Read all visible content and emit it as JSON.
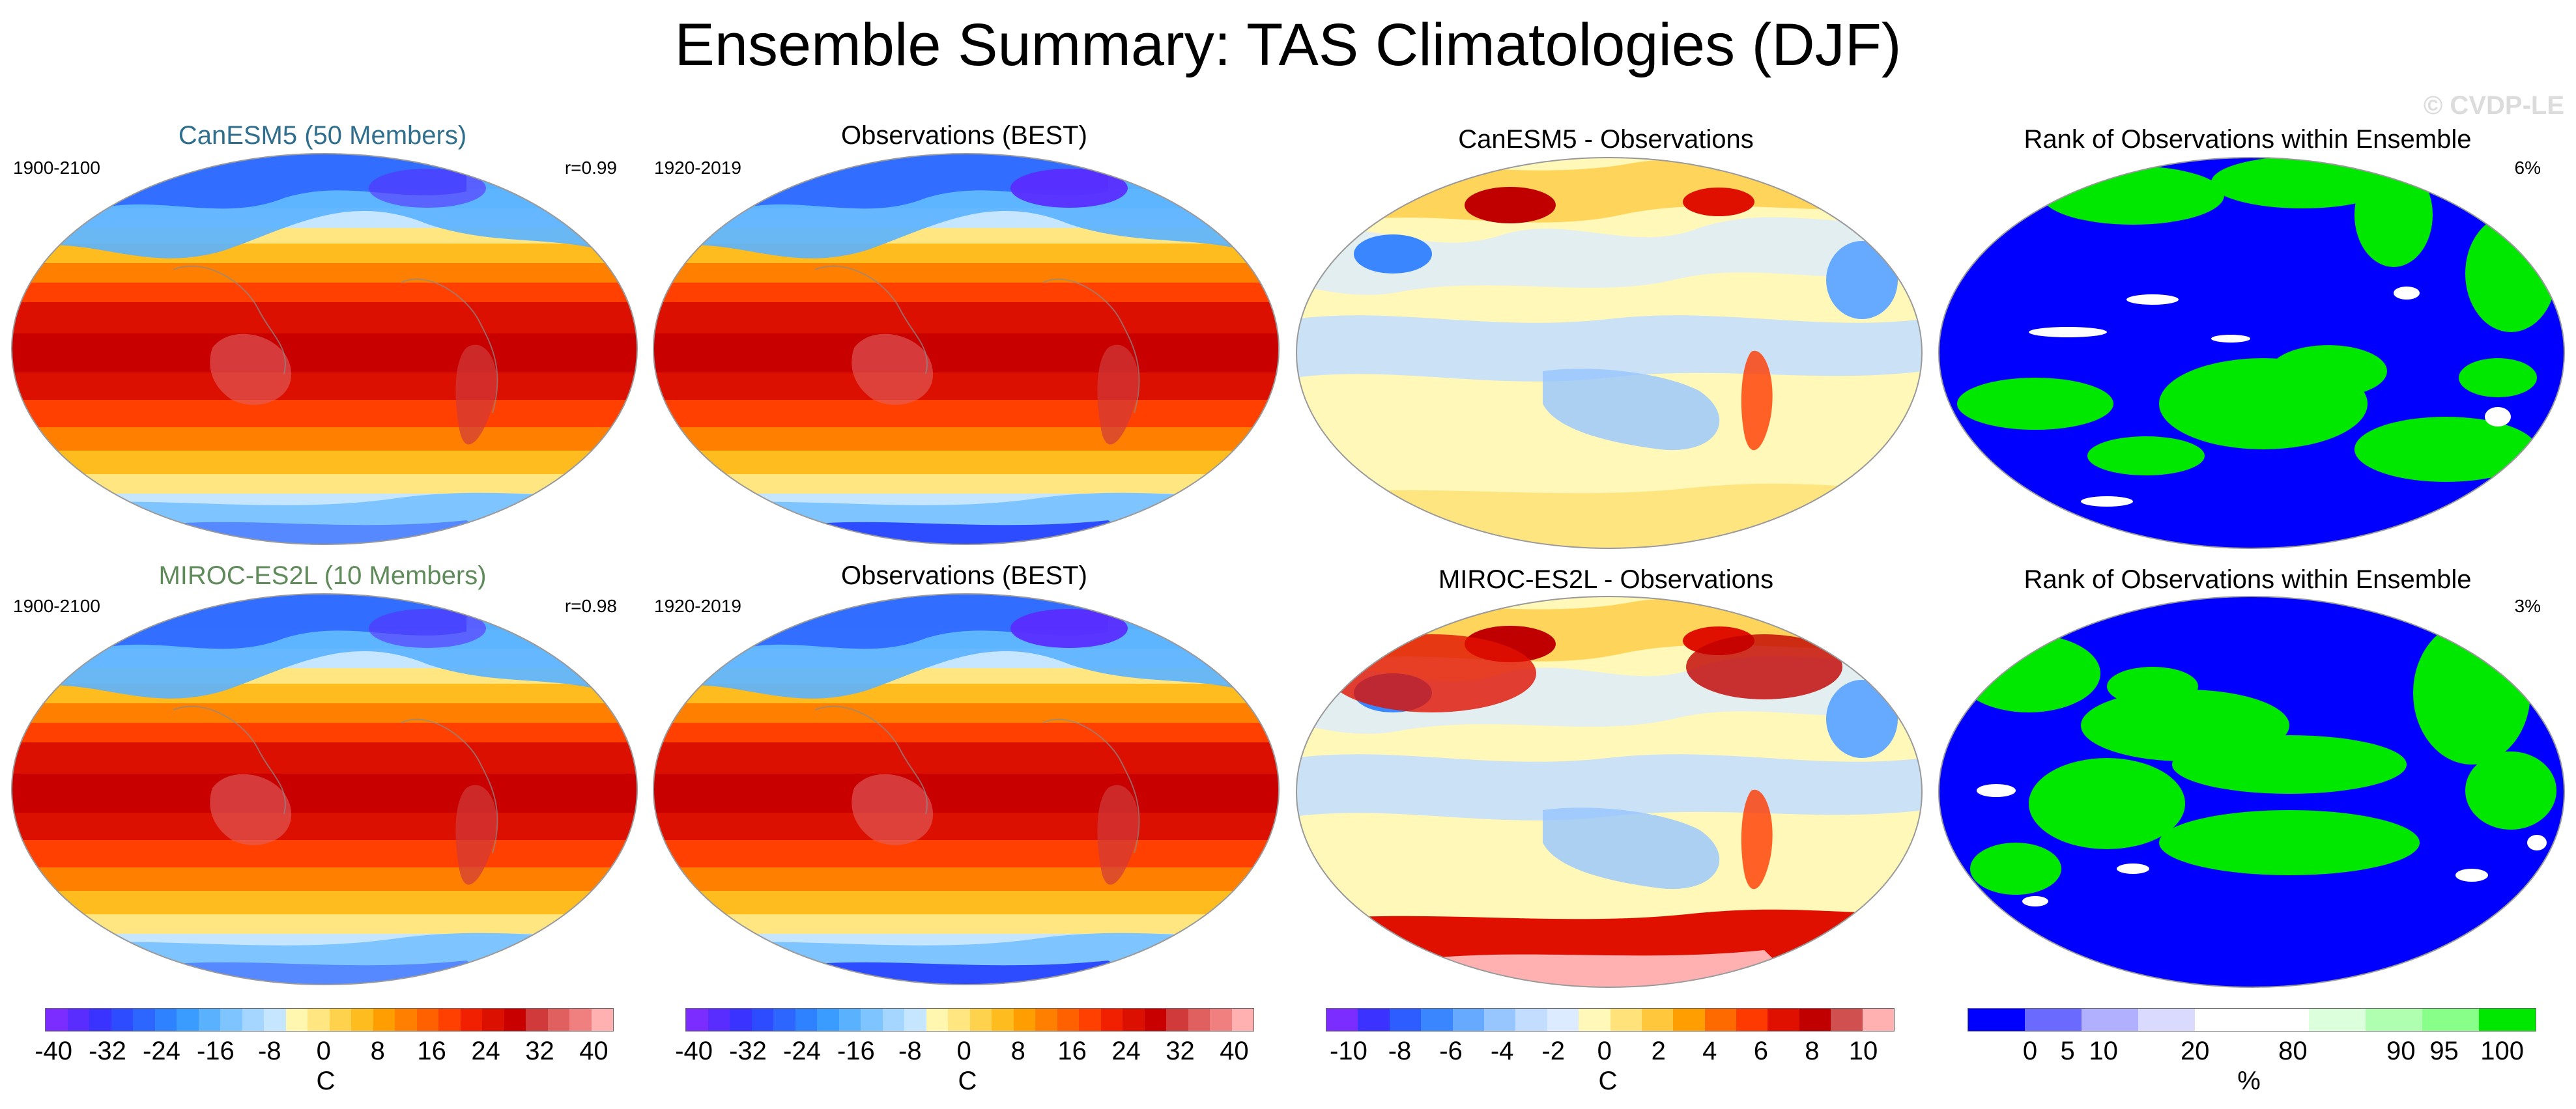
{
  "title": "Ensemble Summary: TAS Climatologies (DJF)",
  "watermark": "© CVDP-LE",
  "rows": [
    {
      "model": {
        "title": "CanESM5 (50 Members)",
        "title_color": "#2f6e8c",
        "period": "1900-2100",
        "corr": "r=0.99"
      },
      "obs": {
        "title": "Observations (BEST)",
        "period": "1920-2019"
      },
      "diff": {
        "title": "CanESM5 - Observations"
      },
      "rank": {
        "title": "Rank of Observations within Ensemble",
        "value": "6%"
      }
    },
    {
      "model": {
        "title": "MIROC-ES2L (10 Members)",
        "title_color": "#5f8a5a",
        "period": "1900-2100",
        "corr": "r=0.98"
      },
      "obs": {
        "title": "Observations (BEST)",
        "period": "1920-2019"
      },
      "diff": {
        "title": "MIROC-ES2L - Observations"
      },
      "rank": {
        "title": "Rank of Observations within Ensemble",
        "value": "3%"
      }
    }
  ],
  "colorbars": [
    {
      "labels": [
        "-40",
        "-32",
        "-24",
        "-16",
        "-8",
        "0",
        "8",
        "16",
        "24",
        "32",
        "40"
      ],
      "unit": "C"
    },
    {
      "labels": [
        "-40",
        "-32",
        "-24",
        "-16",
        "-8",
        "0",
        "8",
        "16",
        "24",
        "32",
        "40"
      ],
      "unit": "C"
    },
    {
      "labels": [
        "-10",
        "-8",
        "-6",
        "-4",
        "-2",
        "0",
        "2",
        "4",
        "6",
        "8",
        "10"
      ],
      "unit": "C"
    },
    {
      "labels": [
        "0",
        "5",
        "10",
        "20",
        "80",
        "90",
        "95",
        "100"
      ],
      "unit": "%"
    }
  ],
  "colors": {
    "temp_scale": [
      "#7b2dff",
      "#5a2dff",
      "#3a32ff",
      "#2d4cff",
      "#2d66ff",
      "#2f82ff",
      "#3a9cff",
      "#5ab2ff",
      "#7ec4ff",
      "#a4d6ff",
      "#c6e6ff",
      "#fff7b0",
      "#ffe680",
      "#ffd24d",
      "#ffbc1f",
      "#ff9e00",
      "#ff8000",
      "#ff6000",
      "#ff4000",
      "#f02000",
      "#dc1000",
      "#c80000",
      "#d03a3a",
      "#e06060",
      "#f08080",
      "#ffb0b0"
    ],
    "diff_scale": [
      "#7b2dff",
      "#3b32ff",
      "#2d5cff",
      "#3a86ff",
      "#66aaff",
      "#97c6ff",
      "#c2ddff",
      "#dcebff",
      "#fff8b8",
      "#ffe27a",
      "#ffc83c",
      "#ff9e00",
      "#ff6a00",
      "#ff3a00",
      "#e01000",
      "#c00000",
      "#d05050",
      "#ffb0b0"
    ],
    "rank_scale": [
      "#0000ff",
      "#6a6aff",
      "#b0b0ff",
      "#dadaff",
      "#ffffff",
      "#ffffff",
      "#dcffdc",
      "#b0ffb0",
      "#88ff88",
      "#00e800"
    ]
  }
}
